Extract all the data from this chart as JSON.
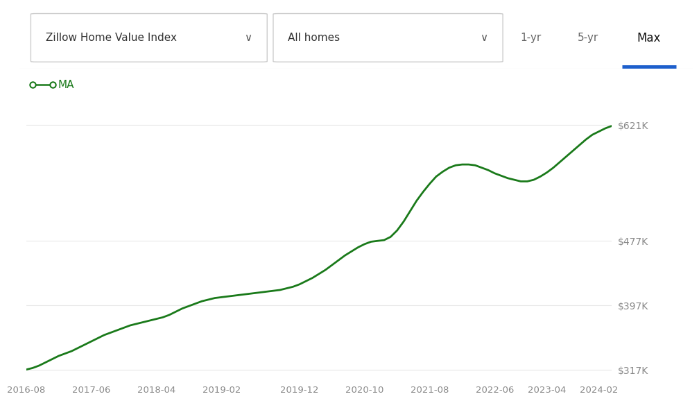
{
  "y_ticks": [
    317000,
    397000,
    477000,
    621000
  ],
  "y_tick_labels": [
    "$317K",
    "$397K",
    "$477K",
    "$621K"
  ],
  "y_min": 305000,
  "y_max": 650000,
  "line_color": "#1a7a1a",
  "line_width": 2.0,
  "background_color": "#ffffff",
  "grid_color": "#e8e8e8",
  "legend_label": "MA",
  "legend_color": "#1a7a1a",
  "dropdown1": "Zillow Home Value Index",
  "dropdown2": "All homes",
  "btn_max_color": "#1d5fcc",
  "data_y": [
    317000,
    319000,
    322000,
    326000,
    330000,
    334000,
    337000,
    340000,
    344000,
    348000,
    352000,
    356000,
    360000,
    363000,
    366000,
    369000,
    372000,
    374000,
    376000,
    378000,
    380000,
    382000,
    385000,
    389000,
    393000,
    396000,
    399000,
    402000,
    404000,
    406000,
    407000,
    408000,
    409000,
    410000,
    411000,
    412000,
    413000,
    414000,
    415000,
    416000,
    418000,
    420000,
    423000,
    427000,
    431000,
    436000,
    441000,
    447000,
    453000,
    459000,
    464000,
    469000,
    473000,
    476000,
    477000,
    478000,
    482000,
    490000,
    501000,
    514000,
    527000,
    538000,
    548000,
    557000,
    563000,
    568000,
    571000,
    572000,
    572000,
    571000,
    568000,
    565000,
    561000,
    558000,
    555000,
    553000,
    551000,
    551000,
    553000,
    557000,
    562000,
    568000,
    575000,
    582000,
    589000,
    596000,
    603000,
    609000,
    613000,
    617000,
    620000
  ],
  "x_tick_positions": [
    0,
    10,
    20,
    30,
    42,
    52,
    62,
    72,
    80,
    88
  ],
  "x_tick_labels_plot": [
    "2016-08",
    "2017-06",
    "2018-04",
    "2019-02",
    "2019-12",
    "2020-10",
    "2021-08",
    "2022-06",
    "2023-04",
    "2024-02"
  ]
}
